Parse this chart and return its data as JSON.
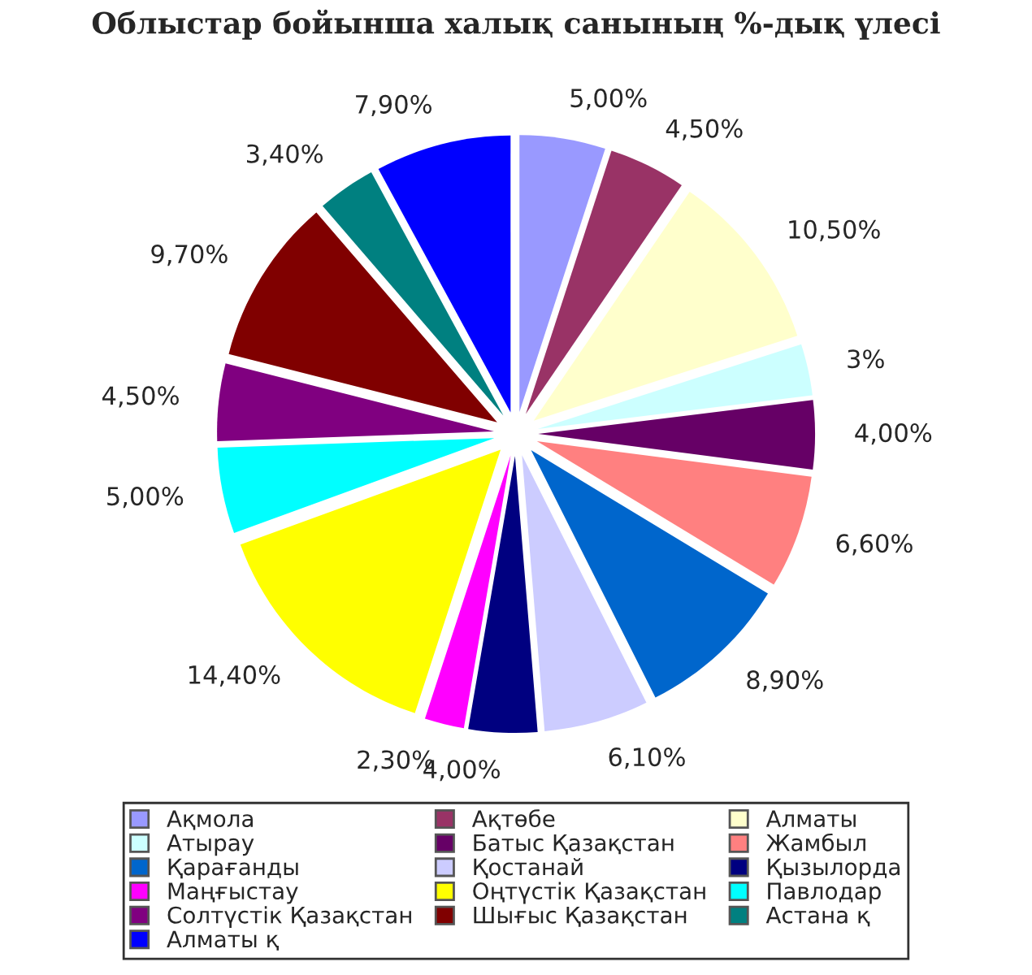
{
  "chart_data": {
    "type": "pie",
    "title": "Облыстар бойынша халық санының %-дық үлесі",
    "categories": [
      "Ақмола",
      "Ақтөбе",
      "Алматы",
      "Атырау",
      "Батыс Қазақстан",
      "Жамбыл",
      "Қарағанды",
      "Қостанай",
      "Қызылорда",
      "Маңғыстау",
      "Оңтүстік Қазақстан",
      "Павлодар",
      "Солтүстік Қазақстан",
      "Шығыс Қазақстан",
      "Астана қ",
      "Алматы қ"
    ],
    "values": [
      5.0,
      4.5,
      10.5,
      3,
      4.0,
      6.6,
      8.9,
      6.1,
      4.0,
      2.3,
      14.4,
      5.0,
      4.5,
      9.7,
      3.4,
      7.9
    ],
    "value_labels": [
      "5,00%",
      "4,50%",
      "10,50%",
      "3%",
      "4,00%",
      "6,60%",
      "8,90%",
      "6,10%",
      "4,00%",
      "2,30%",
      "14,40%",
      "5,00%",
      "4,50%",
      "9,70%",
      "3,40%",
      "7,90%"
    ],
    "colors": [
      "#9999ff",
      "#993366",
      "#ffffcc",
      "#ccffff",
      "#660066",
      "#ff8080",
      "#0066cc",
      "#ccccff",
      "#000080",
      "#ff00ff",
      "#ffff00",
      "#00ffff",
      "#800080",
      "#800000",
      "#008080",
      "#0000ff"
    ],
    "legend": "bottom"
  }
}
